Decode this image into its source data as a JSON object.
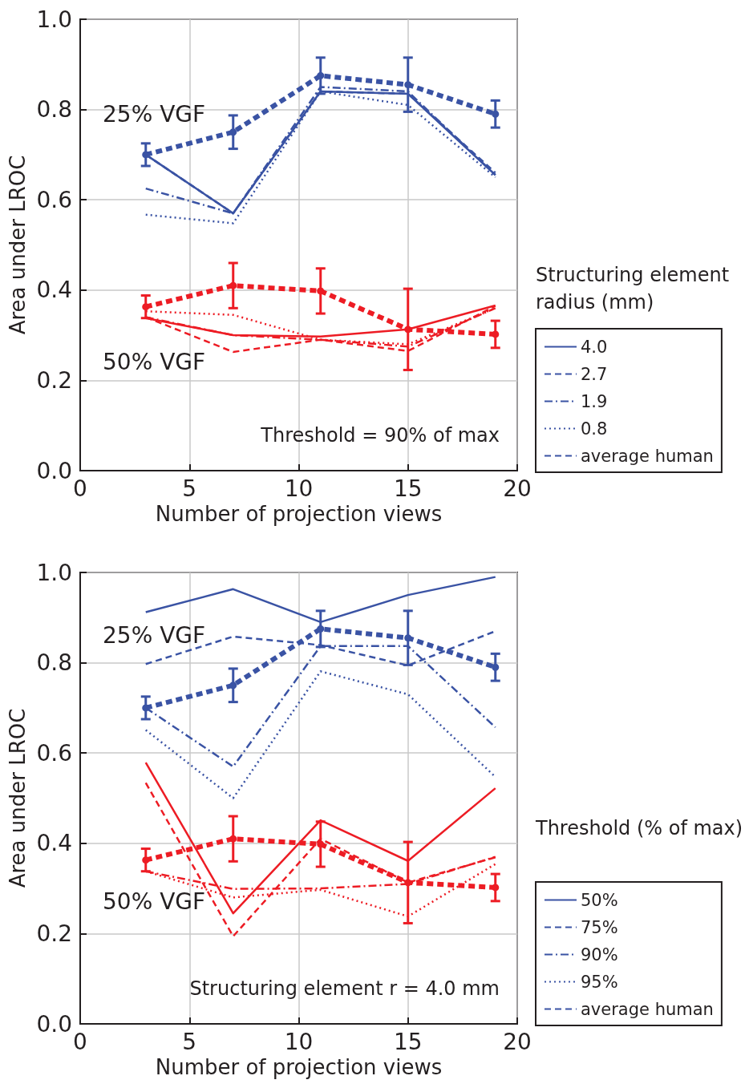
{
  "chart_data": [
    {
      "type": "line",
      "xlabel": "Number of projection views",
      "ylabel": "Area under LROC",
      "x": [
        3,
        7,
        11,
        15,
        19
      ],
      "xlim": [
        0,
        20
      ],
      "xticks": [
        0,
        5,
        10,
        15,
        20
      ],
      "ylim": [
        0,
        1
      ],
      "yticks": [
        {
          "value": 0,
          "label": "0.0"
        },
        {
          "value": 0.2,
          "label": "0.2"
        },
        {
          "value": 0.4,
          "label": "0.4"
        },
        {
          "value": 0.6,
          "label": "0.6"
        },
        {
          "value": 0.8,
          "label": "0.8"
        },
        {
          "value": 1,
          "label": "1.0"
        }
      ],
      "grid": true,
      "legend": "right",
      "legend_title": "Structuring element radius (mm)",
      "annotations": [
        "25% VGF",
        "50% VGF",
        "Threshold = 90% of max"
      ],
      "series": [
        {
          "name": "4.0",
          "color": "#3a53a4",
          "line_style": "solid",
          "values": [
            0.7,
            0.57,
            0.84,
            0.835,
            0.655
          ]
        },
        {
          "name": "2.7",
          "color": "#3a53a4",
          "line_style": "dashed",
          "values": [
            0.7,
            0.57,
            0.84,
            0.835,
            0.66
          ]
        },
        {
          "name": "1.9",
          "color": "#3a53a4",
          "line_style": "dashdot",
          "values": [
            0.625,
            0.57,
            0.85,
            0.84,
            0.655
          ]
        },
        {
          "name": "0.8",
          "color": "#3a53a4",
          "line_style": "dotted",
          "values": [
            0.567,
            0.548,
            0.84,
            0.81,
            0.65
          ]
        },
        {
          "name": "average human",
          "color": "#3a53a4",
          "line_style": "dashed",
          "marker": "circle",
          "values": [
            0.7,
            0.75,
            0.875,
            0.855,
            0.79
          ],
          "errors": [
            0.025,
            0.037,
            0.04,
            0.06,
            0.03
          ]
        },
        {
          "color": "#ed1c24",
          "line_style": "solid",
          "values": [
            0.338,
            0.3,
            0.297,
            0.313,
            0.366
          ]
        },
        {
          "color": "#ed1c24",
          "line_style": "dashed",
          "values": [
            0.34,
            0.263,
            0.29,
            0.265,
            0.365
          ]
        },
        {
          "color": "#ed1c24",
          "line_style": "dashdot",
          "values": [
            0.34,
            0.3,
            0.29,
            0.275,
            0.36
          ]
        },
        {
          "color": "#ed1c24",
          "line_style": "dotted",
          "values": [
            0.353,
            0.345,
            0.29,
            0.28,
            0.36
          ]
        },
        {
          "color": "#ed1c24",
          "line_style": "dashed",
          "marker": "circle",
          "values": [
            0.363,
            0.41,
            0.398,
            0.313,
            0.302
          ],
          "errors": [
            0.025,
            0.05,
            0.05,
            0.09,
            0.03
          ]
        }
      ]
    },
    {
      "type": "line",
      "xlabel": "Number of projection views",
      "ylabel": "Area under LROC",
      "x": [
        3,
        7,
        11,
        15,
        19
      ],
      "xlim": [
        0,
        20
      ],
      "xticks": [
        0,
        5,
        10,
        15,
        20
      ],
      "ylim": [
        0,
        1
      ],
      "yticks": [
        {
          "value": 0,
          "label": "0.0"
        },
        {
          "value": 0.2,
          "label": "0.2"
        },
        {
          "value": 0.4,
          "label": "0.4"
        },
        {
          "value": 0.6,
          "label": "0.6"
        },
        {
          "value": 0.8,
          "label": "0.8"
        },
        {
          "value": 1,
          "label": "1.0"
        }
      ],
      "grid": true,
      "legend": "right",
      "legend_title": "Threshold (% of max)",
      "annotations": [
        "25% VGF",
        "50% VGF",
        "Structuring element r = 4.0 mm"
      ],
      "series": [
        {
          "name": "50%",
          "color": "#3a53a4",
          "line_style": "solid",
          "values": [
            0.912,
            0.963,
            0.89,
            0.95,
            0.99
          ]
        },
        {
          "name": "75%",
          "color": "#3a53a4",
          "line_style": "dashed",
          "values": [
            0.797,
            0.858,
            0.839,
            0.794,
            0.87
          ]
        },
        {
          "name": "90%",
          "color": "#3a53a4",
          "line_style": "dashdot",
          "values": [
            0.7,
            0.57,
            0.837,
            0.837,
            0.657
          ]
        },
        {
          "name": "95%",
          "color": "#3a53a4",
          "line_style": "dotted",
          "values": [
            0.651,
            0.5,
            0.781,
            0.73,
            0.547
          ]
        },
        {
          "name": "average human",
          "color": "#3a53a4",
          "line_style": "dashed",
          "marker": "circle",
          "values": [
            0.7,
            0.75,
            0.875,
            0.855,
            0.79
          ],
          "errors": [
            0.025,
            0.037,
            0.04,
            0.06,
            0.03
          ]
        },
        {
          "color": "#ed1c24",
          "line_style": "solid",
          "values": [
            0.579,
            0.245,
            0.451,
            0.361,
            0.522
          ]
        },
        {
          "color": "#ed1c24",
          "line_style": "dashed",
          "values": [
            0.534,
            0.194,
            0.41,
            0.313,
            0.369
          ]
        },
        {
          "color": "#ed1c24",
          "line_style": "dashdot",
          "values": [
            0.338,
            0.299,
            0.3,
            0.31,
            0.37
          ]
        },
        {
          "color": "#ed1c24",
          "line_style": "dotted",
          "values": [
            0.338,
            0.28,
            0.297,
            0.238,
            0.354
          ]
        },
        {
          "color": "#ed1c24",
          "line_style": "dashed",
          "marker": "circle",
          "values": [
            0.363,
            0.41,
            0.398,
            0.313,
            0.302
          ],
          "errors": [
            0.025,
            0.05,
            0.05,
            0.09,
            0.03
          ]
        }
      ]
    }
  ]
}
